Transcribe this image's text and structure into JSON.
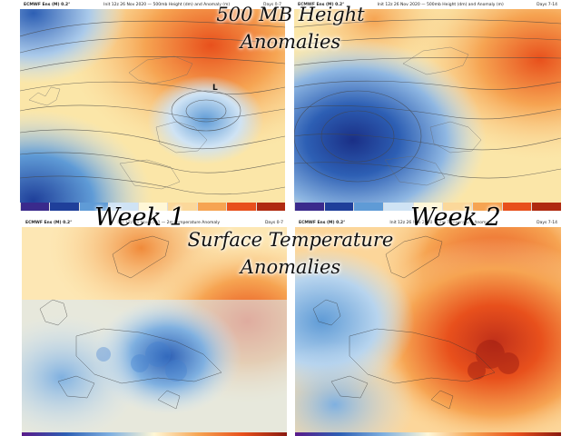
{
  "titles": {
    "upper_line1": "500 MB Height",
    "upper_line2": "Anomalies",
    "lower_line1": "Surface Temperature",
    "lower_line2": "Anomalies"
  },
  "week_labels": {
    "week1": "Week 1",
    "week2": "Week 2"
  },
  "panels": {
    "height_week1": {
      "header_left": "ECMWF Ens (M) 0.2°",
      "header_mid": "Init 12z 26 Nov 2020 — 500mb Height (dm) and Anomaly (m)",
      "header_right": "Days 0-7"
    },
    "height_week2": {
      "header_left": "ECMWF Ens (M) 0.2°",
      "header_mid": "Init 12z 26 Nov 2020 — 500mb Height (dm) and Anomaly (m)",
      "header_right": "Days 7-14"
    },
    "temp_week1": {
      "header_left": "ECMWF Ens (M) 0.2°",
      "header_mid": "Init 12z 26 Nov 2020 — 2m Temperature Anomaly",
      "header_right": "Days 0-7"
    },
    "temp_week2": {
      "header_left": "ECMWF Ens (M) 0.2°",
      "header_mid": "Init 12z 26 Nov 2020 — 2m Temperature Anomaly",
      "header_right": "Days 7-14"
    }
  },
  "map_labels": {
    "low": "L"
  },
  "colors": {
    "warm_strong": "#e8501c",
    "warm": "#f6a452",
    "warm_light": "#fbd89a",
    "neutral": "#fff7d6",
    "cool_light": "#cfe3f4",
    "cool": "#5f9bd6",
    "cool_strong": "#1f3f9a",
    "cold_deep": "#3a2a8c"
  }
}
